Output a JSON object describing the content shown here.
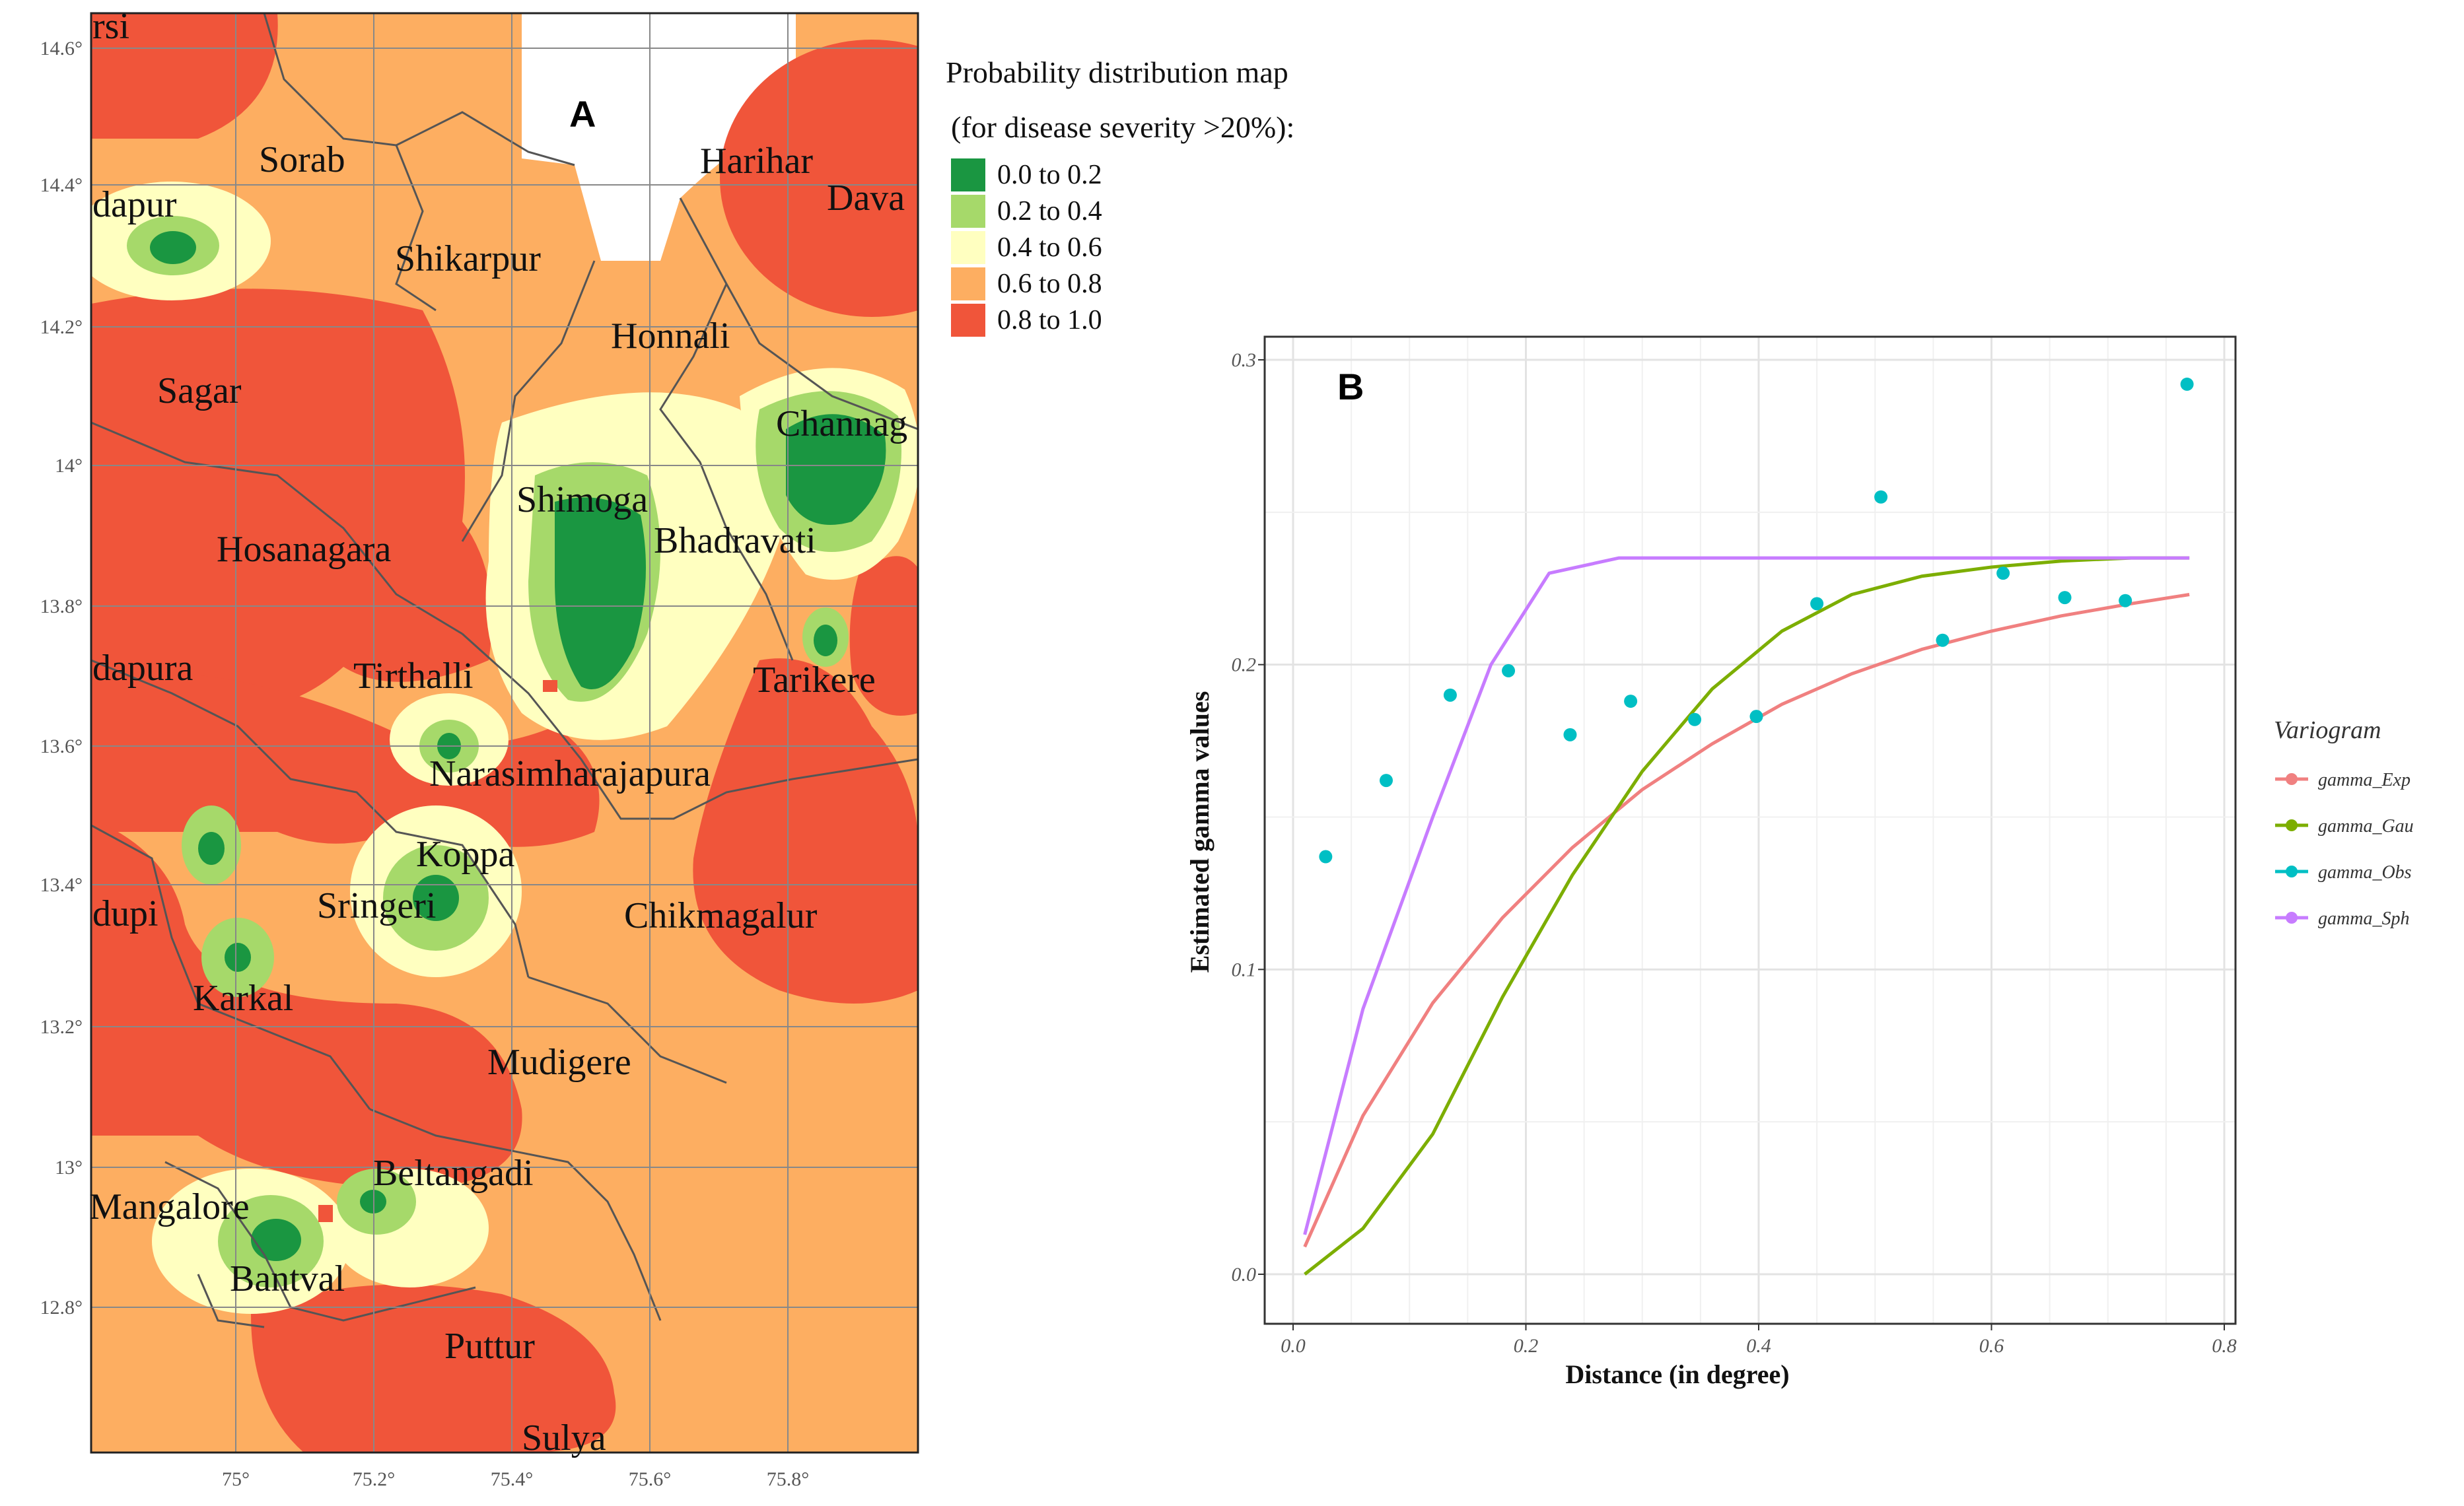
{
  "chart_data": [
    {
      "type": "heatmap",
      "panel": "A",
      "title": "Probability distribution map",
      "subtitle": "(for disease severity >20%):",
      "x_ticks": [
        "75°",
        "75.2°",
        "75.4°",
        "75.6°",
        "75.8°"
      ],
      "y_ticks": [
        "14.6°",
        "14.4°",
        "14.2°",
        "14°",
        "13.8°",
        "13.6°",
        "13.4°",
        "13.2°",
        "13°",
        "12.8°"
      ],
      "legend": [
        {
          "label": "0.0 to 0.2",
          "color": "#1a9641"
        },
        {
          "label": "0.2 to 0.4",
          "color": "#a6d96a"
        },
        {
          "label": "0.4 to 0.6",
          "color": "#ffffc0"
        },
        {
          "label": "0.6 to 0.8",
          "color": "#fdae61"
        },
        {
          "label": "0.8 to 1.0",
          "color": "#f0553a"
        }
      ],
      "places": [
        "rsi",
        "Sorab",
        "dapur",
        "Shikarpur",
        "Harihar",
        "Dava",
        "Honnali",
        "Sagar",
        "Channag",
        "Shimoga",
        "Bhadravati",
        "Hosanagara",
        "dapura",
        "Tirthalli",
        "Tarikere",
        "Narasimharajapura",
        "Koppa",
        "dupi",
        "Sringeri",
        "Chikmagalur",
        "Karkal",
        "Mudigere",
        "Beltangadi",
        "Mangalore",
        "Bantval",
        "Puttur",
        "Sulya"
      ]
    },
    {
      "type": "line",
      "panel": "B",
      "xlabel": "Distance (in degree)",
      "ylabel": "Estimated gamma values",
      "xlim": [
        0,
        0.8
      ],
      "ylim": [
        0,
        0.3
      ],
      "x_ticks": [
        "0.0",
        "0.2",
        "0.4",
        "0.6",
        "0.8"
      ],
      "y_ticks": [
        "0.0",
        "0.1",
        "0.2",
        "0.3"
      ],
      "legend_title": "Variogram",
      "series": [
        {
          "name": "gamma_Exp",
          "style": "line",
          "color": "#f08080",
          "x": [
            0.01,
            0.06,
            0.12,
            0.18,
            0.24,
            0.3,
            0.36,
            0.42,
            0.48,
            0.54,
            0.6,
            0.66,
            0.72,
            0.77
          ],
          "y": [
            0.009,
            0.052,
            0.089,
            0.117,
            0.14,
            0.159,
            0.174,
            0.187,
            0.197,
            0.205,
            0.211,
            0.216,
            0.22,
            0.223
          ]
        },
        {
          "name": "gamma_Gau",
          "style": "line",
          "color": "#7cae00",
          "x": [
            0.01,
            0.06,
            0.12,
            0.18,
            0.24,
            0.3,
            0.36,
            0.42,
            0.48,
            0.54,
            0.6,
            0.66,
            0.72,
            0.77
          ],
          "y": [
            0.0,
            0.015,
            0.046,
            0.091,
            0.131,
            0.165,
            0.192,
            0.211,
            0.223,
            0.229,
            0.232,
            0.234,
            0.235,
            0.235
          ]
        },
        {
          "name": "gamma_Obs",
          "style": "points",
          "color": "#00bfc4",
          "x": [
            0.028,
            0.08,
            0.135,
            0.185,
            0.238,
            0.29,
            0.345,
            0.398,
            0.45,
            0.505,
            0.558,
            0.61,
            0.663,
            0.715,
            0.768
          ],
          "y": [
            0.137,
            0.162,
            0.19,
            0.198,
            0.177,
            0.188,
            0.182,
            0.183,
            0.22,
            0.255,
            0.208,
            0.23,
            0.222,
            0.221,
            0.292
          ]
        },
        {
          "name": "gamma_Sph",
          "style": "line",
          "color": "#c77cff",
          "x": [
            0.01,
            0.06,
            0.12,
            0.17,
            0.22,
            0.28,
            0.4,
            0.55,
            0.77
          ],
          "y": [
            0.013,
            0.087,
            0.15,
            0.2,
            0.23,
            0.235,
            0.235,
            0.235,
            0.235
          ]
        }
      ]
    }
  ],
  "colors": {
    "map_background": "#fdae61",
    "panel_border": "#222222",
    "grid_major": "#e3e3e3"
  }
}
